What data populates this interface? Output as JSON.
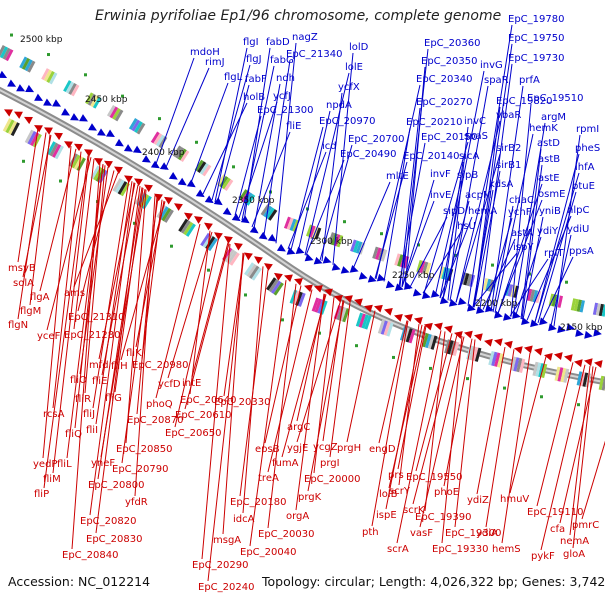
{
  "title": "Erwinia pyrifoliae Ep1/96 chromosome, complete genome",
  "footer": {
    "accession": "Accession: NC_012214",
    "summary": "Topology: circular; Length: 4,026,322 bp; Genes: 3,742"
  },
  "colors": {
    "forward_strand": "#0000cc",
    "reverse_strand": "#cc0000",
    "backbone": "#8c8c8c"
  },
  "kbp_ticks": [
    "2500 kbp",
    "2450 kbp",
    "2400 kbp",
    "2350 kbp",
    "2300 kbp",
    "2250 kbp",
    "2200 kbp",
    "2150 kbp"
  ],
  "forward_labels": [
    "EpC_19780",
    "EpC_19750",
    "EpC_19730",
    "EpC_20360",
    "EpC_20350",
    "EpC_20340",
    "mdoH",
    "flgI",
    "fabD",
    "nagZ",
    "rimJ",
    "flgJ",
    "fabG",
    "EpC_21340",
    "lolD",
    "lolE",
    "flgL",
    "fabF",
    "ndh",
    "ycfX",
    "holB",
    "ycfJ",
    "npdA",
    "EpC_21300",
    "EpC_20270",
    "invG",
    "spaR",
    "prfA",
    "EpC_19820",
    "EpC_19510",
    "vbaR",
    "fliE",
    "EpC_20970",
    "EpC_20210",
    "invC",
    "spaS",
    "hemK",
    "argM",
    "rpmI",
    "astD",
    "pheS",
    "icd",
    "EpC_20700",
    "EpC_20150",
    "sicA",
    "sirB2",
    "EpC_20490",
    "EpC_20140",
    "sirB1",
    "astB",
    "ihfA",
    "mltE",
    "invF",
    "sipB",
    "kdsA",
    "astE",
    "btuE",
    "invE",
    "acpM",
    "chaC",
    "osmE",
    "sipD",
    "hemA",
    "ychF",
    "yniB",
    "nlpC",
    "hsU",
    "astA",
    "ydiY",
    "ydiU",
    "ispY",
    "rpIT",
    "ppsA"
  ],
  "reverse_labels": [
    "msyB",
    "solA",
    "flgA",
    "ams",
    "flgM",
    "flgN",
    "EpC_21310",
    "yceF",
    "EpC_21280",
    "fliK",
    "mfd",
    "fliH",
    "EpC_20980",
    "fliO",
    "fliE",
    "ycfD",
    "fliR",
    "fliG",
    "intE",
    "phoQ",
    "EpC_20640",
    "rcsA",
    "fliJ",
    "EpC_20610",
    "EpC_20870",
    "fliQ",
    "fliI",
    "EpC_20650",
    "EpC_20330",
    "yedP",
    "fliL",
    "yneF",
    "EpC_20850",
    "argC",
    "epsB",
    "ygjE",
    "ycgZ",
    "prgH",
    "EpC_20790",
    "fumA",
    "prgI",
    "engD",
    "fliM",
    "treA",
    "EpC_20000",
    "prs",
    "EpC_19550",
    "EpC_20800",
    "scrY",
    "phoE",
    "lolB",
    "fliP",
    "yfdR",
    "EpC_20180",
    "prgK",
    "scrK",
    "EpC_19390",
    "ydiZ",
    "hmuV",
    "EpC_20820",
    "idcA",
    "orgA",
    "ispE",
    "vasF",
    "EpC_19300",
    "ydiA",
    "EpC_19110",
    "EpC_20830",
    "msgA",
    "EpC_20030",
    "pth",
    "scrA",
    "EpC_19330",
    "hemS",
    "cfa",
    "pmrC",
    "nemA",
    "EpC_20840",
    "EpC_20040",
    "pykF",
    "gloA",
    "EpC_20290",
    "EpC_20240"
  ]
}
